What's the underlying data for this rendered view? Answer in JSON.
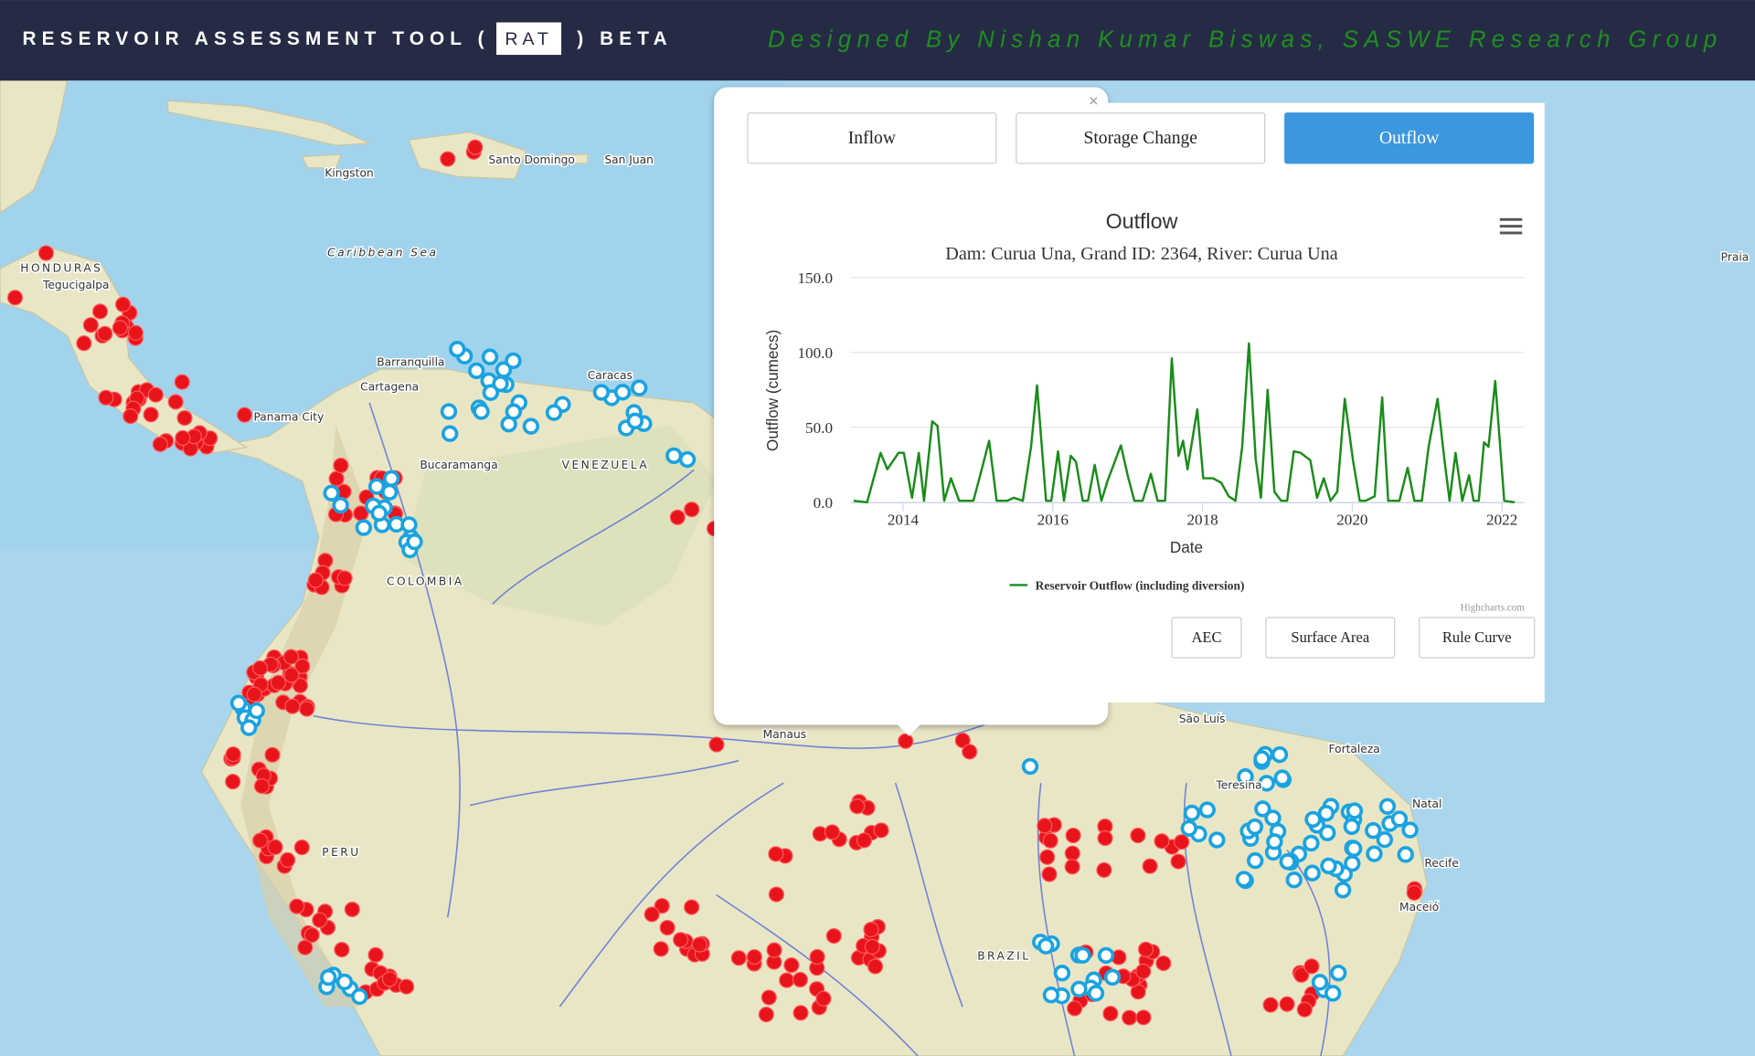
{
  "header": {
    "title_prefix": "RESERVOIR ASSESSMENT TOOL (",
    "badge": "RAT",
    "title_suffix": ") BETA",
    "credit": "Designed By Nishan Kumar Biswas, SASWE Research Group"
  },
  "map": {
    "labels": [
      "Kingston",
      "Caribbean Sea",
      "Santo Domingo",
      "San Juan",
      "HONDURAS",
      "Tegucigalpa",
      "Barranquilla",
      "Cartagena",
      "Caracas",
      "VENEZUELA",
      "Bucaramanga",
      "Panama City",
      "COLOMBIA",
      "Manaus",
      "São Luís",
      "Fortaleza",
      "Teresina",
      "Natal",
      "Recife",
      "Maceió",
      "BRAZIL",
      "PERU",
      "Praia"
    ]
  },
  "popup": {
    "close": "×",
    "tabs": [
      "Inflow",
      "Storage Change",
      "Outflow"
    ],
    "active_tab": 2,
    "buttons": [
      "AEC",
      "Surface Area",
      "Rule Curve"
    ]
  },
  "chart_data": {
    "type": "line",
    "title": "Outflow",
    "subtitle": "Dam: Curua Una, Grand ID: 2364, River: Curua Una",
    "x_label": "Date",
    "y_label": "Outflow (cumecs)",
    "credits": "Highcharts.com",
    "x": [
      2013.34,
      2013.52,
      2013.7,
      2013.79,
      2013.94,
      2014.01,
      2014.12,
      2014.21,
      2014.28,
      2014.39,
      2014.46,
      2014.55,
      2014.64,
      2014.75,
      2014.94,
      2015.03,
      2015.15,
      2015.25,
      2015.39,
      2015.48,
      2015.6,
      2015.71,
      2015.79,
      2015.91,
      2015.98,
      2016.07,
      2016.15,
      2016.24,
      2016.31,
      2016.4,
      2016.47,
      2016.56,
      2016.65,
      2016.73,
      2016.91,
      2017.0,
      2017.09,
      2017.2,
      2017.31,
      2017.4,
      2017.5,
      2017.59,
      2017.68,
      2017.74,
      2017.8,
      2017.93,
      2018.01,
      2018.14,
      2018.25,
      2018.35,
      2018.44,
      2018.53,
      2018.62,
      2018.71,
      2018.78,
      2018.87,
      2018.96,
      2019.05,
      2019.13,
      2019.22,
      2019.31,
      2019.44,
      2019.53,
      2019.62,
      2019.71,
      2019.8,
      2019.9,
      2020.01,
      2020.1,
      2020.18,
      2020.3,
      2020.4,
      2020.48,
      2020.63,
      2020.74,
      2020.83,
      2020.93,
      2021.02,
      2021.14,
      2021.23,
      2021.3,
      2021.38,
      2021.47,
      2021.56,
      2021.62,
      2021.69,
      2021.76,
      2021.82,
      2021.91,
      2022.03,
      2022.17
    ],
    "series": [
      {
        "name": "Reservoir Outflow (including diversion)",
        "color": "#1a8c1a",
        "values": [
          1,
          0,
          33,
          22,
          33,
          33,
          3,
          33,
          1,
          54,
          51,
          1,
          16,
          1,
          1,
          18,
          41,
          1,
          1,
          3,
          1,
          37,
          78,
          1,
          1,
          34,
          1,
          31,
          27,
          1,
          1,
          25,
          1,
          14,
          38,
          18,
          1,
          1,
          19,
          1,
          1,
          96,
          31,
          41,
          22,
          62,
          16,
          16,
          13,
          4,
          1,
          37,
          106,
          29,
          3,
          75,
          7,
          1,
          1,
          34,
          33,
          28,
          3,
          16,
          1,
          7,
          69,
          28,
          1,
          1,
          4,
          70,
          1,
          1,
          23,
          1,
          1,
          37,
          69,
          29,
          1,
          33,
          1,
          18,
          1,
          1,
          40,
          37,
          81,
          1,
          0
        ]
      }
    ],
    "xlim": [
      2013.3,
      2022.3
    ],
    "ylim": [
      0,
      150
    ],
    "xticks": [
      2014,
      2016,
      2018,
      2020,
      2022
    ],
    "yticks": [
      {
        "value": 0,
        "label": "0.0"
      },
      {
        "value": 50,
        "label": "50.0"
      },
      {
        "value": 100,
        "label": "100.0"
      },
      {
        "value": 150,
        "label": "150.0"
      }
    ],
    "grid": true
  }
}
